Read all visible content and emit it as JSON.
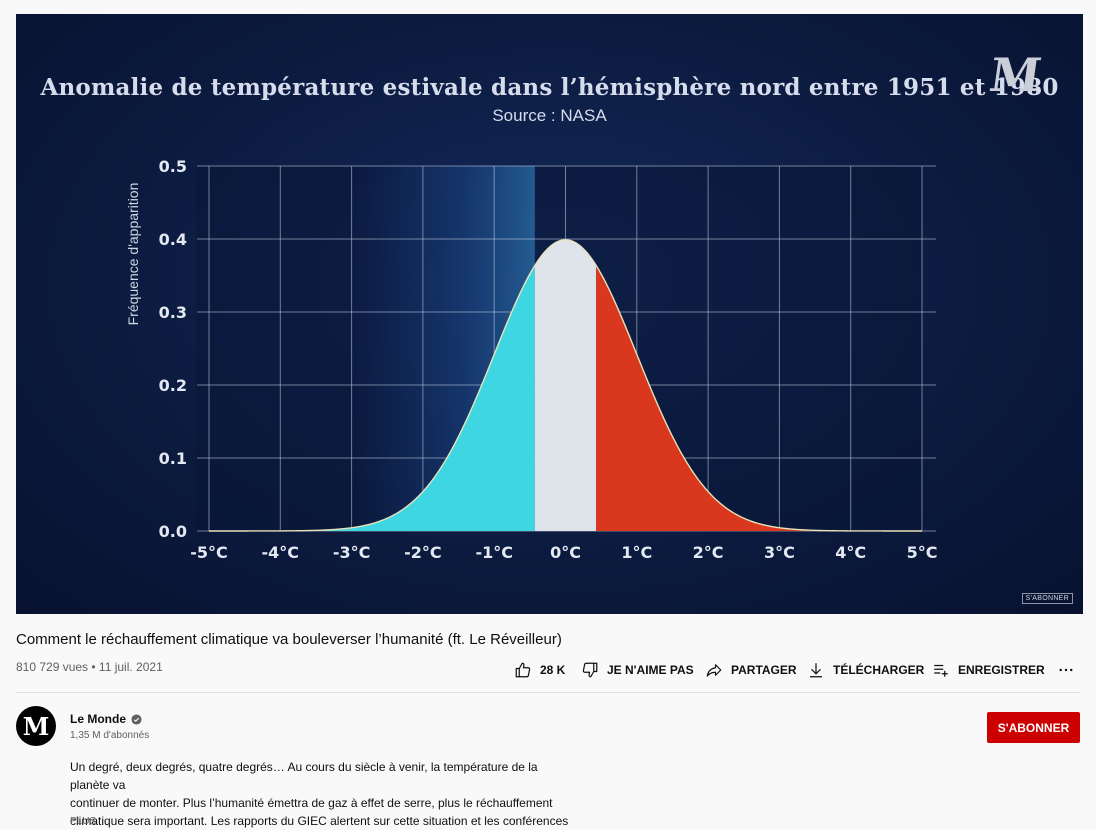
{
  "video": {
    "title": "Anomalie de température estivale dans l’hémisphère nord entre 1951 et 1980",
    "source": "Source : NASA",
    "logo": "M",
    "subscribe_watermark": "S'ABONNER",
    "chart_data": {
      "type": "area",
      "xlabel": "",
      "ylabel": "Fréquence d'apparition",
      "x_tick_labels": [
        "-5°C",
        "-4°C",
        "-3°C",
        "-2°C",
        "-1°C",
        "0°C",
        "1°C",
        "2°C",
        "3°C",
        "4°C",
        "5°C"
      ],
      "y_tick_labels": [
        "0.0",
        "0.1",
        "0.2",
        "0.3",
        "0.4",
        "0.5"
      ],
      "xlim": [
        -5,
        5
      ],
      "ylim": [
        0,
        0.5
      ],
      "grid": true,
      "curve": "normal distribution, mean 0, standard deviation 1 (peak 0.4)",
      "regions": [
        {
          "from": -5,
          "to": -0.43,
          "color": "#3fd6e4"
        },
        {
          "from": -0.43,
          "to": 0.43,
          "color": "#dfe3ea"
        },
        {
          "from": 0.43,
          "to": 5,
          "color": "#d9381f"
        }
      ]
    }
  },
  "video_title": "Comment le réchauffement climatique va bouleverser l’humanité (ft. Le Réveilleur)",
  "meta": "810 729 vues • 11 juil. 2021",
  "actions": {
    "like": "28 K",
    "dislike": "JE N'AIME PAS",
    "share": "PARTAGER",
    "download": "TÉLÉCHARGER",
    "save": "ENREGISTRER"
  },
  "channel": {
    "avatar": "M",
    "name": "Le Monde",
    "subscribers": "1,35 M d'abonnés",
    "subscribe_button": "S'ABONNER"
  },
  "description": {
    "line1": "Un degré, deux degrés, quatre degrés… Au cours du siècle à venir, la température de la planète va",
    "line2": "continuer de monter. Plus l’humanité émettra de gaz à effet de serre, plus le réchauffement",
    "line3": "climatique sera important. Les rapports du GIEC alertent sur cette situation et les conférences",
    "more": "PLUS"
  },
  "colors": {
    "accent_red": "#cc0000",
    "cold": "#3fd6e4",
    "hot": "#d9381f",
    "neutral": "#dfe3ea"
  }
}
